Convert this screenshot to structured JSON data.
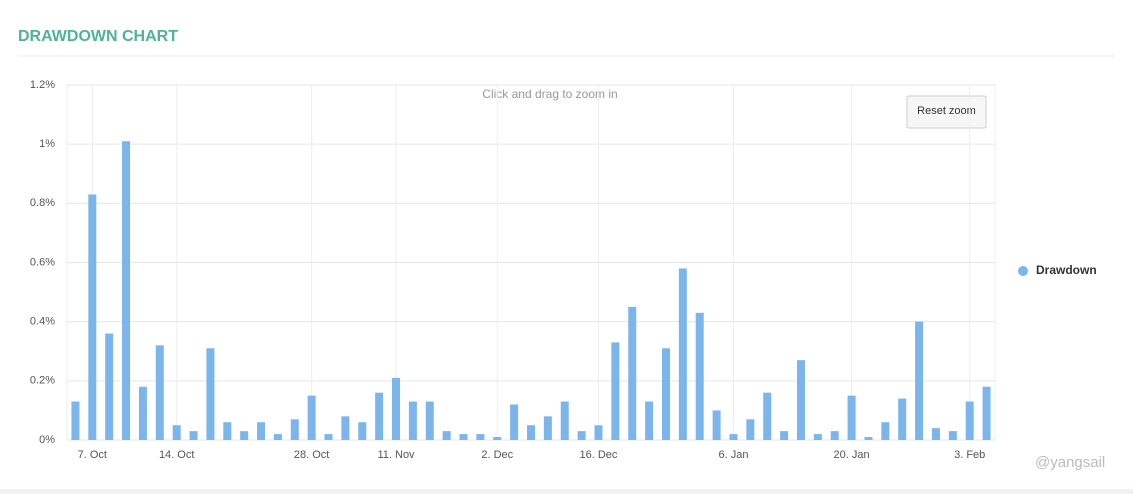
{
  "header": {
    "title": "DRAWDOWN CHART"
  },
  "chart_data": {
    "type": "bar",
    "subtitle": "Click and drag to zoom in",
    "reset_button": "Reset zoom",
    "watermark": "@yangsail",
    "categories": [
      null,
      "7. Oct",
      null,
      null,
      null,
      null,
      "14. Oct",
      null,
      null,
      null,
      null,
      null,
      null,
      null,
      "28. Oct",
      null,
      null,
      null,
      null,
      "11. Nov",
      null,
      null,
      null,
      null,
      null,
      "2. Dec",
      null,
      null,
      null,
      null,
      null,
      "16. Dec",
      null,
      null,
      null,
      null,
      null,
      null,
      null,
      "6. Jan",
      null,
      null,
      null,
      null,
      null,
      null,
      "20. Jan",
      null,
      null,
      null,
      null,
      null,
      null,
      "3. Feb",
      null
    ],
    "series": [
      {
        "name": "Drawdown",
        "color": "#7cb5ec",
        "values": [
          0.13,
          0.83,
          0.36,
          1.01,
          0.18,
          0.32,
          0.05,
          0.03,
          0.31,
          0.06,
          0.03,
          0.06,
          0.02,
          0.07,
          0.15,
          0.02,
          0.08,
          0.06,
          0.16,
          0.21,
          0.13,
          0.13,
          0.03,
          0.02,
          0.02,
          0.01,
          0.12,
          0.05,
          0.08,
          0.13,
          0.03,
          0.05,
          0.33,
          0.45,
          0.13,
          0.31,
          0.58,
          0.43,
          0.1,
          0.02,
          0.07,
          0.16,
          0.03,
          0.27,
          0.02,
          0.03,
          0.15,
          0.01,
          0.06,
          0.14,
          0.4,
          0.04,
          0.03,
          0.13,
          0.18
        ]
      }
    ],
    "ylim": [
      0,
      1.2
    ],
    "yticks": [
      {
        "value": 0,
        "label": "0%"
      },
      {
        "value": 0.2,
        "label": "0.2%"
      },
      {
        "value": 0.4,
        "label": "0.4%"
      },
      {
        "value": 0.6,
        "label": "0.6%"
      },
      {
        "value": 0.8,
        "label": "0.8%"
      },
      {
        "value": 1,
        "label": "1%"
      },
      {
        "value": 1.2,
        "label": "1.2%"
      }
    ],
    "grid": true,
    "legend": "right"
  }
}
